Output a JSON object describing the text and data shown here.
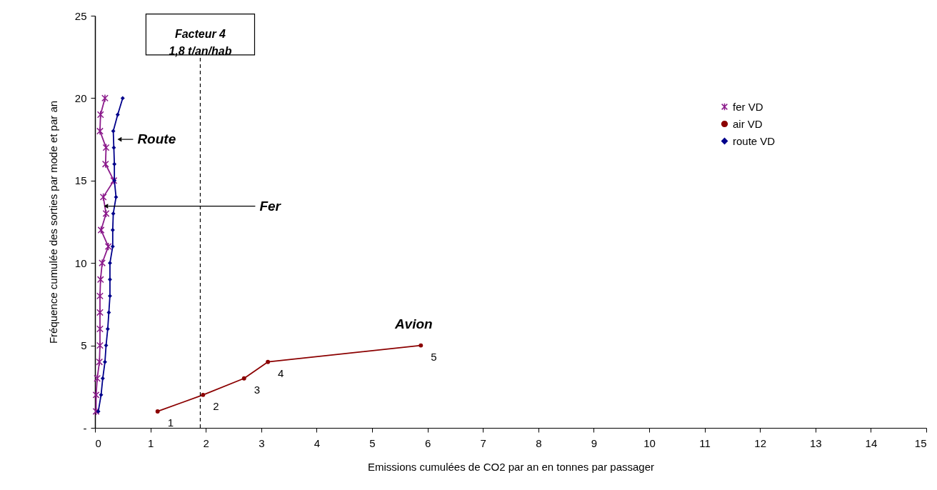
{
  "chart_data": {
    "type": "line",
    "xlabel": "Emissions cumulées de CO2 par an en tonnes par passager",
    "ylabel": "Fréquence cumulée des sorties par mode et par an",
    "xlim": [
      0,
      15
    ],
    "xticks": [
      0,
      1,
      2,
      3,
      4,
      5,
      6,
      7,
      8,
      9,
      10,
      11,
      12,
      13,
      14,
      15
    ],
    "ylim": [
      0,
      25
    ],
    "yticks": [
      {
        "value": 0,
        "label": "-"
      },
      5,
      10,
      15,
      20,
      25
    ],
    "grid": false,
    "legend": "right",
    "line_style": "solid",
    "series": [
      {
        "name": "fer VD",
        "color": "#8b1a8b",
        "marker": "cross",
        "x": [
          0.02,
          0.02,
          0.04,
          0.08,
          0.09,
          0.09,
          0.09,
          0.09,
          0.1,
          0.13,
          0.24,
          0.11,
          0.2,
          0.15,
          0.34,
          0.19,
          0.2,
          0.09,
          0.1,
          0.18
        ],
        "values": [
          1,
          2,
          3,
          4,
          5,
          6,
          7,
          8,
          9,
          10,
          11,
          12,
          13,
          14,
          15,
          16,
          17,
          18,
          19,
          20
        ]
      },
      {
        "name": "air VD",
        "color": "#8b0000",
        "marker": "circle",
        "x": [
          1.13,
          1.95,
          2.69,
          3.12,
          5.88
        ],
        "values": [
          1,
          2,
          3,
          4,
          5
        ],
        "value_labels": [
          "1",
          "2",
          "3",
          "4",
          "5"
        ]
      },
      {
        "name": "route VD",
        "color": "#00008b",
        "marker": "diamond",
        "x": [
          0.06,
          0.11,
          0.14,
          0.18,
          0.2,
          0.23,
          0.25,
          0.27,
          0.27,
          0.27,
          0.32,
          0.32,
          0.33,
          0.38,
          0.35,
          0.35,
          0.34,
          0.33,
          0.41,
          0.5
        ],
        "values": [
          1,
          2,
          3,
          4,
          5,
          6,
          7,
          8,
          9,
          10,
          11,
          12,
          13,
          14,
          15,
          16,
          17,
          18,
          19,
          20
        ]
      }
    ],
    "ref_lines": [
      {
        "axis": "x",
        "value": 1.9,
        "label": "Facteur 4\n1,8 t/an/hab",
        "line_style": "dashed",
        "color": "#000000"
      }
    ],
    "annotations": [
      {
        "text": "Route",
        "x": 0.34,
        "y": 17.5
      },
      {
        "text": "Fer",
        "x": 0.16,
        "y": 13.45
      },
      {
        "text": "Avion",
        "x": 5.88,
        "y": 5
      }
    ]
  }
}
